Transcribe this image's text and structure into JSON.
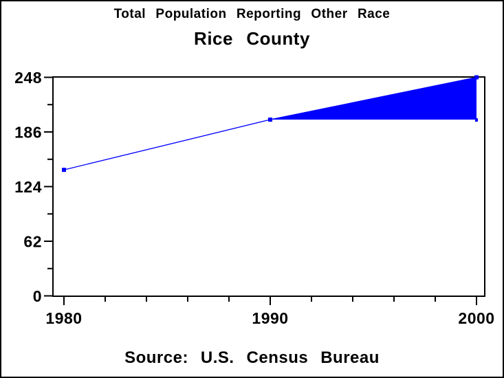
{
  "chart_data": {
    "type": "line",
    "title": "Total Population Reporting Other Race",
    "subtitle": "Rice County",
    "source": "Source: U.S. Census Bureau",
    "x": [
      1980,
      1990,
      2000
    ],
    "x_tick_labels": [
      "1980",
      "1990",
      "2000"
    ],
    "series": [
      {
        "name": "Total population reporting other race",
        "color": "#0000ff",
        "marker": "square",
        "values": [
          143,
          200,
          248
        ]
      }
    ],
    "fill_area": {
      "description": "Solid blue wedge between the 1990 population level and the rising line from 1990 to 2000",
      "x_range": [
        1990,
        2000
      ],
      "baseline_value": 200,
      "color": "#0000ff"
    },
    "xlim": [
      1980,
      2000
    ],
    "ylim": [
      0,
      248
    ],
    "x_major_ticks": [
      1980,
      1990,
      2000
    ],
    "x_minor_ticks": [
      1982,
      1984,
      1986,
      1988,
      1992,
      1994,
      1996,
      1998
    ],
    "y_major_ticks": [
      0,
      62,
      124,
      186,
      248
    ],
    "y_tick_labels": [
      "0",
      "62",
      "124",
      "186",
      "248"
    ],
    "y_minor_ticks": [
      31,
      93,
      155,
      217
    ],
    "grid": false,
    "legend": "none",
    "frame": true,
    "axis_color": "#000000",
    "background_color": "#ffffff",
    "border_color": "#000000"
  }
}
